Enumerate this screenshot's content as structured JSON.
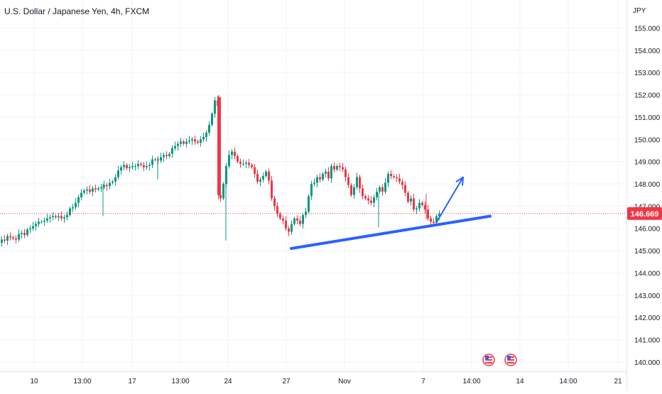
{
  "header": {
    "title": "U.S. Dollar / Japanese Yen, 4h, FXCM"
  },
  "price_axis": {
    "currency": "JPY"
  },
  "current_price": {
    "label": "146.669",
    "value": 146.669,
    "color": "#f23645"
  },
  "colors": {
    "up": "#089981",
    "down": "#f23645",
    "trendline": "#2962ff",
    "arrow": "#2962ff",
    "grid": "#f0f3fa"
  },
  "chart_data": {
    "type": "candlestick",
    "title": "U.S. Dollar / Japanese Yen, 4h, FXCM",
    "ylabel": "JPY",
    "ylim": [
      139.6,
      156.2
    ],
    "y_ticks": [
      "155.000",
      "154.000",
      "153.000",
      "152.000",
      "151.000",
      "150.000",
      "149.000",
      "148.000",
      "147.000",
      "146.000",
      "145.000",
      "144.000",
      "143.000",
      "142.000",
      "141.000",
      "140.000"
    ],
    "x_ticks": [
      "10",
      "13:00",
      "17",
      "13:00",
      "24",
      "27",
      "Nov",
      "7",
      "14:00",
      "14",
      "14:00",
      "21"
    ],
    "price_samples": [
      [
        0,
        145.35
      ],
      [
        4,
        145.5
      ],
      [
        8,
        145.45
      ],
      [
        12,
        145.65
      ],
      [
        16,
        145.6
      ],
      [
        20,
        145.55
      ],
      [
        24,
        145.5
      ],
      [
        28,
        145.75
      ],
      [
        32,
        145.8
      ],
      [
        36,
        145.7
      ],
      [
        40,
        145.95
      ],
      [
        44,
        146.0
      ],
      [
        48,
        146.1
      ],
      [
        52,
        146.2
      ],
      [
        56,
        146.3
      ],
      [
        60,
        146.3
      ],
      [
        64,
        146.35
      ],
      [
        68,
        146.45
      ],
      [
        72,
        146.5
      ],
      [
        76,
        146.55
      ],
      [
        80,
        146.5
      ],
      [
        84,
        146.55
      ],
      [
        88,
        146.45
      ],
      [
        92,
        146.5
      ],
      [
        96,
        146.6
      ],
      [
        100,
        146.9
      ],
      [
        104,
        146.95
      ],
      [
        108,
        147.15
      ],
      [
        112,
        147.4
      ],
      [
        116,
        147.6
      ],
      [
        120,
        147.7
      ],
      [
        124,
        147.75
      ],
      [
        128,
        147.65
      ],
      [
        132,
        147.8
      ],
      [
        136,
        147.75
      ],
      [
        140,
        147.8
      ],
      [
        144,
        147.85
      ],
      [
        148,
        147.95
      ],
      [
        152,
        147.9
      ],
      [
        156,
        148.05
      ],
      [
        160,
        148.1
      ],
      [
        164,
        148.3
      ],
      [
        168,
        148.6
      ],
      [
        172,
        148.75
      ],
      [
        176,
        148.85
      ],
      [
        180,
        148.7
      ],
      [
        184,
        148.75
      ],
      [
        188,
        148.8
      ],
      [
        192,
        148.8
      ],
      [
        196,
        148.9
      ],
      [
        200,
        148.85
      ],
      [
        204,
        148.75
      ],
      [
        208,
        148.8
      ],
      [
        212,
        148.85
      ],
      [
        216,
        149.1
      ],
      [
        220,
        149.1
      ],
      [
        224,
        149.05
      ],
      [
        228,
        149.2
      ],
      [
        232,
        149.3
      ],
      [
        236,
        149.25
      ],
      [
        240,
        149.35
      ],
      [
        244,
        149.6
      ],
      [
        248,
        149.7
      ],
      [
        252,
        149.8
      ],
      [
        256,
        149.9
      ],
      [
        260,
        149.8
      ],
      [
        264,
        149.9
      ],
      [
        268,
        149.95
      ],
      [
        272,
        150.0
      ],
      [
        276,
        149.9
      ],
      [
        280,
        149.85
      ],
      [
        284,
        150.0
      ],
      [
        288,
        150.1
      ],
      [
        292,
        150.3
      ],
      [
        296,
        150.65
      ],
      [
        300,
        151.15
      ],
      [
        304,
        151.75
      ],
      [
        308,
        151.5
      ],
      [
        309,
        147.5
      ],
      [
        312,
        147.35
      ],
      [
        316,
        148.0
      ],
      [
        320,
        148.8
      ],
      [
        324,
        149.3
      ],
      [
        328,
        149.45
      ],
      [
        332,
        149.25
      ],
      [
        336,
        149.0
      ],
      [
        340,
        148.9
      ],
      [
        344,
        148.9
      ],
      [
        348,
        148.95
      ],
      [
        352,
        148.85
      ],
      [
        356,
        148.75
      ],
      [
        360,
        148.45
      ],
      [
        364,
        148.1
      ],
      [
        368,
        148.2
      ],
      [
        372,
        148.35
      ],
      [
        376,
        148.55
      ],
      [
        380,
        148.15
      ],
      [
        384,
        147.35
      ],
      [
        388,
        147.0
      ],
      [
        392,
        146.65
      ],
      [
        396,
        146.45
      ],
      [
        400,
        146.35
      ],
      [
        404,
        146.0
      ],
      [
        408,
        145.85
      ],
      [
        412,
        146.2
      ],
      [
        416,
        146.45
      ],
      [
        420,
        146.35
      ],
      [
        424,
        146.2
      ],
      [
        428,
        146.6
      ],
      [
        432,
        146.75
      ],
      [
        436,
        147.45
      ],
      [
        440,
        148.0
      ],
      [
        444,
        148.05
      ],
      [
        448,
        148.3
      ],
      [
        452,
        148.2
      ],
      [
        456,
        148.45
      ],
      [
        460,
        148.55
      ],
      [
        464,
        148.25
      ],
      [
        468,
        148.8
      ],
      [
        472,
        148.65
      ],
      [
        476,
        148.8
      ],
      [
        480,
        148.75
      ],
      [
        484,
        148.65
      ],
      [
        488,
        148.3
      ],
      [
        492,
        147.95
      ],
      [
        496,
        147.5
      ],
      [
        500,
        147.85
      ],
      [
        504,
        148.3
      ],
      [
        508,
        147.8
      ],
      [
        512,
        147.45
      ],
      [
        516,
        147.35
      ],
      [
        520,
        147.25
      ],
      [
        524,
        147.15
      ],
      [
        528,
        147.4
      ],
      [
        532,
        147.65
      ],
      [
        536,
        147.85
      ],
      [
        540,
        147.65
      ],
      [
        544,
        148.05
      ],
      [
        548,
        148.45
      ],
      [
        552,
        148.35
      ],
      [
        556,
        148.3
      ],
      [
        560,
        148.25
      ],
      [
        564,
        148.1
      ],
      [
        568,
        147.95
      ],
      [
        572,
        147.6
      ],
      [
        576,
        147.2
      ],
      [
        580,
        147.35
      ],
      [
        584,
        146.85
      ],
      [
        588,
        146.9
      ],
      [
        592,
        147.15
      ],
      [
        596,
        147.05
      ],
      [
        600,
        146.85
      ],
      [
        604,
        146.45
      ],
      [
        608,
        146.3
      ],
      [
        612,
        146.25
      ],
      [
        616,
        146.55
      ],
      [
        620,
        146.669
      ]
    ],
    "annotations": {
      "trendline": {
        "from": [
          410,
          145.1
        ],
        "to": [
          690,
          146.55
        ]
      },
      "arrow": {
        "from": [
          615,
          146.3
        ],
        "to": [
          652,
          148.3
        ]
      },
      "event_markers": [
        "us-flag",
        "us-flag"
      ]
    }
  }
}
